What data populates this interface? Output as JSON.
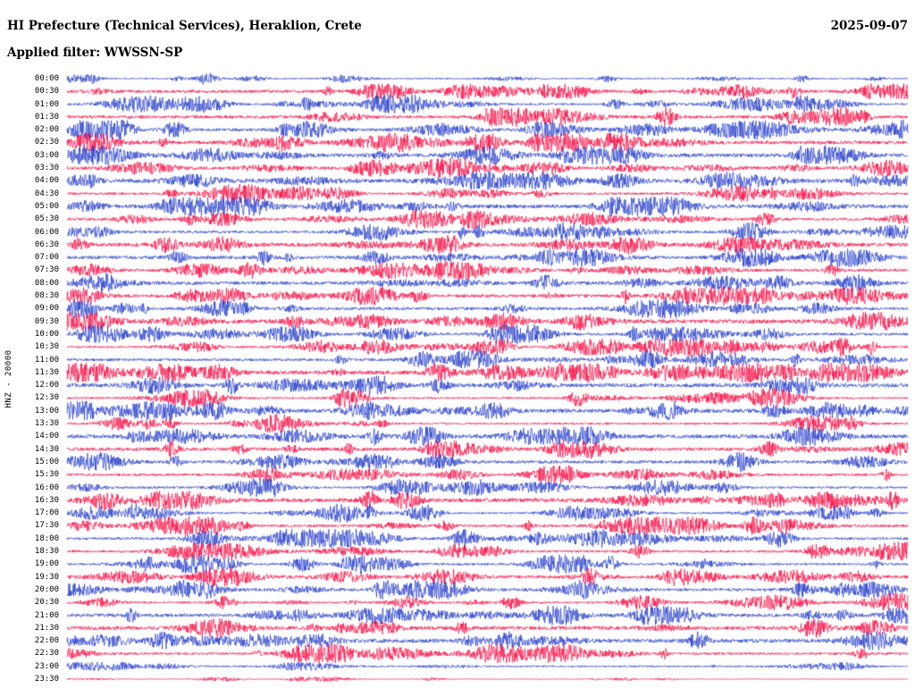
{
  "header": {
    "station_title": "HI Prefecture (Technical Services), Heraklion, Crete",
    "date": "2025-09-07",
    "filter_label": "Applied filter: WWSSN-SP"
  },
  "left_axis": {
    "channel_label": "HNZ - 20000"
  },
  "chart_data": {
    "type": "line",
    "subtype": "helicorder-seismogram",
    "title": "HI Prefecture (Technical Services), Heraklion, Crete",
    "date": "2025-09-07",
    "filter": "WWSSN-SP",
    "channel": "HNZ",
    "scale": 20000,
    "minutes_per_row": 30,
    "row_count": 48,
    "row_labels": [
      "00:00",
      "00:30",
      "01:00",
      "01:30",
      "02:00",
      "02:30",
      "03:00",
      "03:30",
      "04:00",
      "04:30",
      "05:00",
      "05:30",
      "06:00",
      "06:30",
      "07:00",
      "07:30",
      "08:00",
      "08:30",
      "09:00",
      "09:30",
      "10:00",
      "10:30",
      "11:00",
      "11:30",
      "12:00",
      "12:30",
      "13:00",
      "13:30",
      "14:00",
      "14:30",
      "15:00",
      "15:30",
      "16:00",
      "16:30",
      "17:00",
      "17:30",
      "18:00",
      "18:30",
      "19:00",
      "19:30",
      "20:00",
      "20:30",
      "21:00",
      "21:30",
      "22:00",
      "22:30",
      "23:00",
      "23:30"
    ],
    "trace_colors": [
      "#2038c8",
      "#f8003c"
    ],
    "trace_color_order": "even rows blue, odd rows red",
    "grid": false,
    "legend": "none",
    "note": "Continuous seismic waveform noise with intermittent event bursts; individual sample values not legible from image."
  }
}
